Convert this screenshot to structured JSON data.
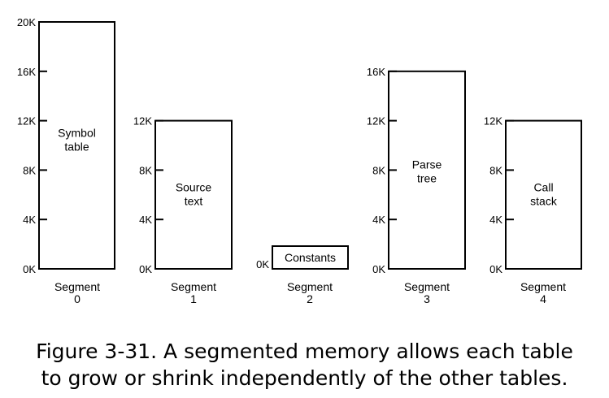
{
  "segments": [
    {
      "name": [
        "Segment",
        "0"
      ],
      "content": [
        "Symbol",
        "table"
      ],
      "size_k": 20,
      "ticks": [
        "0K",
        "4K",
        "8K",
        "12K",
        "16K",
        "20K"
      ]
    },
    {
      "name": [
        "Segment",
        "1"
      ],
      "content": [
        "Source",
        "text"
      ],
      "size_k": 12,
      "ticks": [
        "0K",
        "4K",
        "8K",
        "12K"
      ]
    },
    {
      "name": [
        "Segment",
        "2"
      ],
      "content": [
        "Constants"
      ],
      "size_k": 0,
      "ticks": [
        "0K"
      ]
    },
    {
      "name": [
        "Segment",
        "3"
      ],
      "content": [
        "Parse",
        "tree"
      ],
      "size_k": 16,
      "ticks": [
        "0K",
        "4K",
        "8K",
        "12K",
        "16K"
      ]
    },
    {
      "name": [
        "Segment",
        "4"
      ],
      "content": [
        "Call",
        "stack"
      ],
      "size_k": 12,
      "ticks": [
        "0K",
        "4K",
        "8K",
        "12K"
      ]
    }
  ],
  "caption": {
    "line1": "Figure 3-31. A segmented memory allows each table",
    "line2": "to grow or shrink independently of the other tables."
  }
}
